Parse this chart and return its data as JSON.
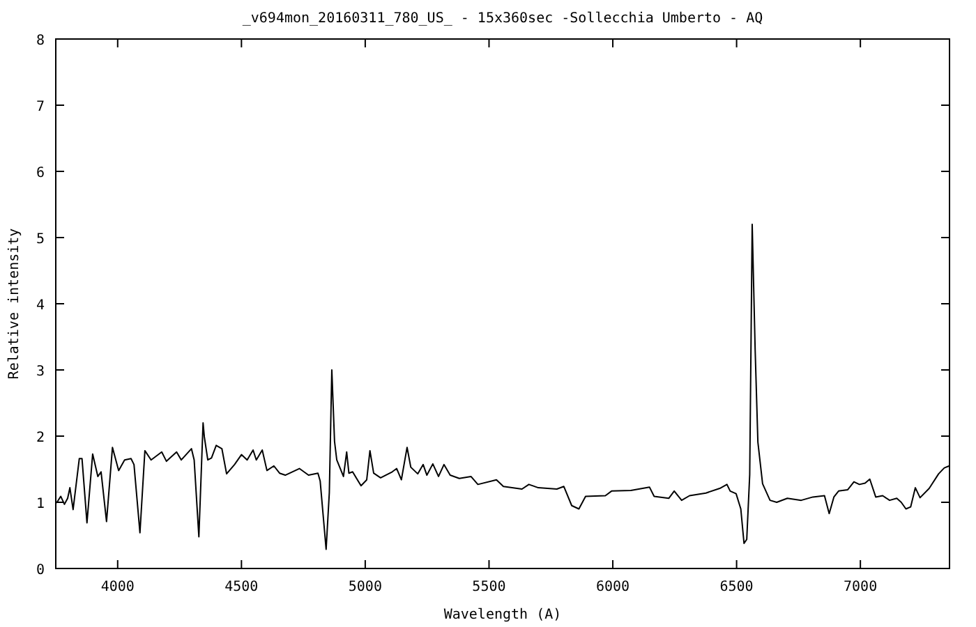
{
  "chart_data": {
    "type": "line",
    "title": "_v694mon_20160311_780_US_ - 15x360sec -Sollecchia Umberto - AQ",
    "xlabel": "Wavelength (A)",
    "ylabel": "Relative intensity",
    "xlim": [
      3750,
      7360
    ],
    "ylim": [
      0,
      8
    ],
    "xticks": [
      4000,
      4500,
      5000,
      5500,
      6000,
      6500,
      7000
    ],
    "yticks": [
      0,
      1,
      2,
      3,
      4,
      5,
      6,
      7,
      8
    ],
    "line_style": "solid",
    "series": [
      {
        "color": "#000000",
        "x": [
          3753,
          3770,
          3785,
          3798,
          3807,
          3820,
          3845,
          3856,
          3876,
          3899,
          3920,
          3933,
          3955,
          3979,
          4004,
          4028,
          4054,
          4066,
          4090,
          4110,
          4135,
          4178,
          4197,
          4238,
          4257,
          4298,
          4309,
          4328,
          4345,
          4350,
          4364,
          4379,
          4398,
          4421,
          4440,
          4472,
          4500,
          4523,
          4547,
          4560,
          4584,
          4603,
          4631,
          4654,
          4677,
          4734,
          4771,
          4809,
          4818,
          4842,
          4855,
          4865,
          4876,
          4885,
          4912,
          4925,
          4934,
          4949,
          4983,
          5006,
          5019,
          5034,
          5062,
          5109,
          5127,
          5146,
          5169,
          5184,
          5212,
          5234,
          5249,
          5273,
          5296,
          5318,
          5343,
          5380,
          5427,
          5455,
          5530,
          5558,
          5633,
          5661,
          5699,
          5774,
          5802,
          5834,
          5863,
          5890,
          5970,
          5995,
          6073,
          6148,
          6167,
          6226,
          6248,
          6278,
          6310,
          6376,
          6432,
          6461,
          6474,
          6498,
          6517,
          6530,
          6541,
          6553,
          6563,
          6575,
          6586,
          6605,
          6635,
          6662,
          6705,
          6761,
          6808,
          6855,
          6874,
          6893,
          6912,
          6949,
          6974,
          6996,
          7019,
          7038,
          7062,
          7090,
          7118,
          7147,
          7165,
          7184,
          7203,
          7222,
          7241,
          7278,
          7316,
          7339,
          7359
        ],
        "values": [
          0.99,
          1.09,
          0.97,
          1.06,
          1.22,
          0.89,
          1.66,
          1.66,
          0.69,
          1.73,
          1.39,
          1.46,
          0.71,
          1.83,
          1.48,
          1.64,
          1.66,
          1.57,
          0.54,
          1.78,
          1.64,
          1.76,
          1.62,
          1.76,
          1.64,
          1.81,
          1.64,
          0.48,
          2.2,
          1.99,
          1.64,
          1.67,
          1.86,
          1.81,
          1.43,
          1.57,
          1.72,
          1.64,
          1.79,
          1.64,
          1.79,
          1.48,
          1.55,
          1.44,
          1.41,
          1.51,
          1.41,
          1.44,
          1.32,
          0.29,
          1.15,
          3.0,
          1.92,
          1.64,
          1.39,
          1.76,
          1.44,
          1.46,
          1.25,
          1.34,
          1.78,
          1.44,
          1.37,
          1.46,
          1.51,
          1.34,
          1.83,
          1.53,
          1.43,
          1.57,
          1.41,
          1.58,
          1.39,
          1.57,
          1.41,
          1.36,
          1.39,
          1.27,
          1.34,
          1.24,
          1.2,
          1.27,
          1.22,
          1.2,
          1.24,
          0.95,
          0.9,
          1.09,
          1.1,
          1.17,
          1.18,
          1.23,
          1.09,
          1.06,
          1.17,
          1.03,
          1.1,
          1.14,
          1.21,
          1.27,
          1.17,
          1.13,
          0.9,
          0.38,
          0.44,
          1.42,
          5.2,
          3.3,
          1.91,
          1.28,
          1.03,
          1.0,
          1.06,
          1.03,
          1.08,
          1.1,
          0.83,
          1.08,
          1.17,
          1.19,
          1.31,
          1.27,
          1.29,
          1.35,
          1.08,
          1.1,
          1.03,
          1.06,
          1.0,
          0.9,
          0.93,
          1.22,
          1.07,
          1.21,
          1.43,
          1.52,
          1.55
        ]
      }
    ]
  }
}
